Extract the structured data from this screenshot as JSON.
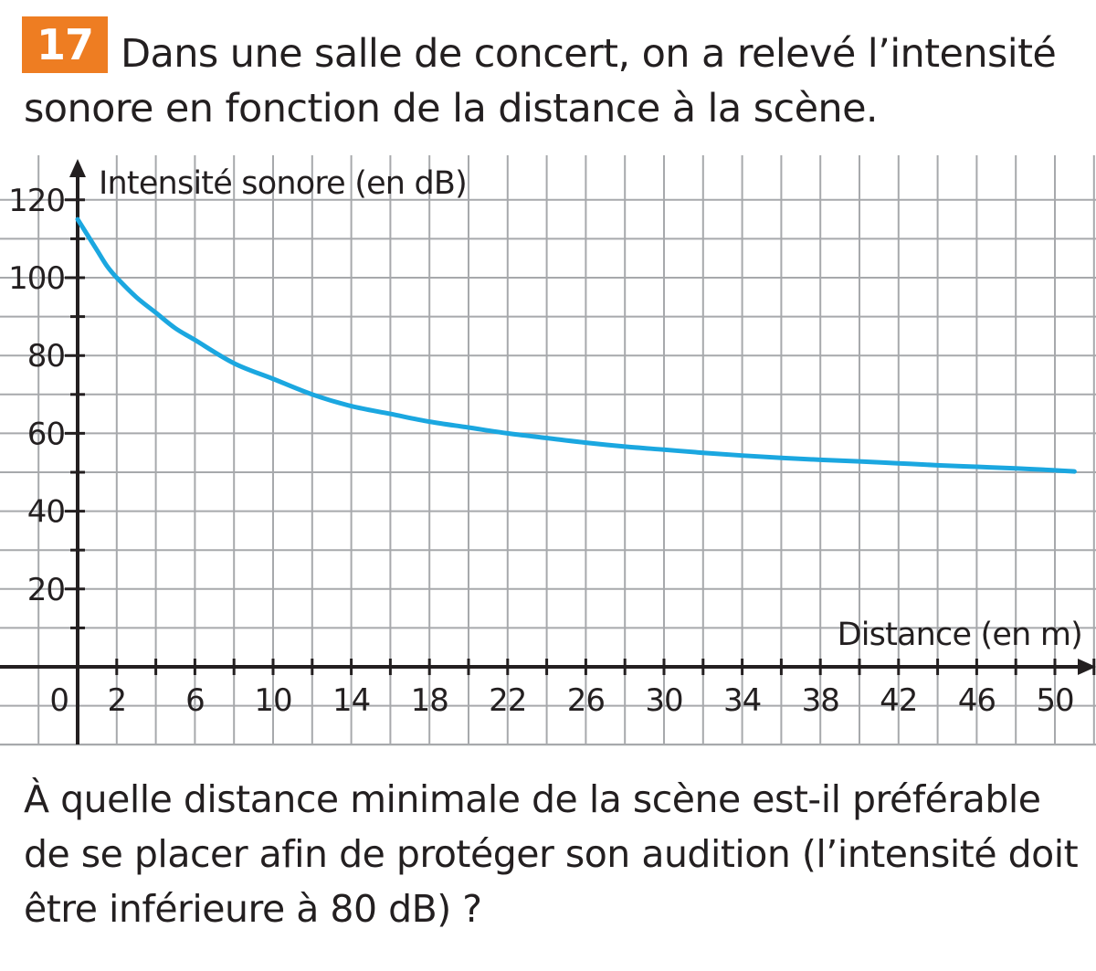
{
  "exercise": {
    "number": "17",
    "statement_lines": [
      "Dans une salle de concert, on a relevé l’intensité",
      "sonore en fonction de la distance à la scène."
    ]
  },
  "chart_data": {
    "type": "line",
    "title": "",
    "xlabel": "Distance (en m)",
    "ylabel": "Intensité sonore (en dB)",
    "xlim": [
      -2,
      52
    ],
    "ylim": [
      -20,
      125
    ],
    "x_ticks": [
      0,
      2,
      6,
      10,
      14,
      18,
      22,
      26,
      30,
      34,
      38,
      42,
      46,
      50
    ],
    "y_ticks": [
      20,
      40,
      60,
      80,
      100,
      120
    ],
    "grid": true,
    "colors": {
      "curve": "#1ba7e0",
      "grid": "#a7a9ac",
      "axis": "#231f20"
    },
    "series": [
      {
        "x": [
          0,
          0.5,
          1,
          1.5,
          2,
          3,
          4,
          5,
          6,
          8,
          10,
          12,
          14,
          16,
          18,
          20,
          22,
          24,
          26,
          28,
          30,
          32,
          34,
          36,
          38,
          40,
          42,
          44,
          46,
          48,
          50,
          51
        ],
        "y": [
          115,
          111,
          107,
          103,
          100,
          95,
          91,
          87,
          84,
          78,
          74,
          70,
          67,
          65,
          63,
          61.5,
          60,
          58.8,
          57.6,
          56.6,
          55.8,
          55,
          54.3,
          53.7,
          53.2,
          52.8,
          52.3,
          51.8,
          51.4,
          51,
          50.5,
          50.2
        ]
      }
    ]
  },
  "question": {
    "lines": [
      "À quelle distance minimale de la scène est-il préférable",
      "de se placer afin de protéger son audition (l’intensité doit",
      "être inférieure à 80 dB) ?"
    ]
  }
}
